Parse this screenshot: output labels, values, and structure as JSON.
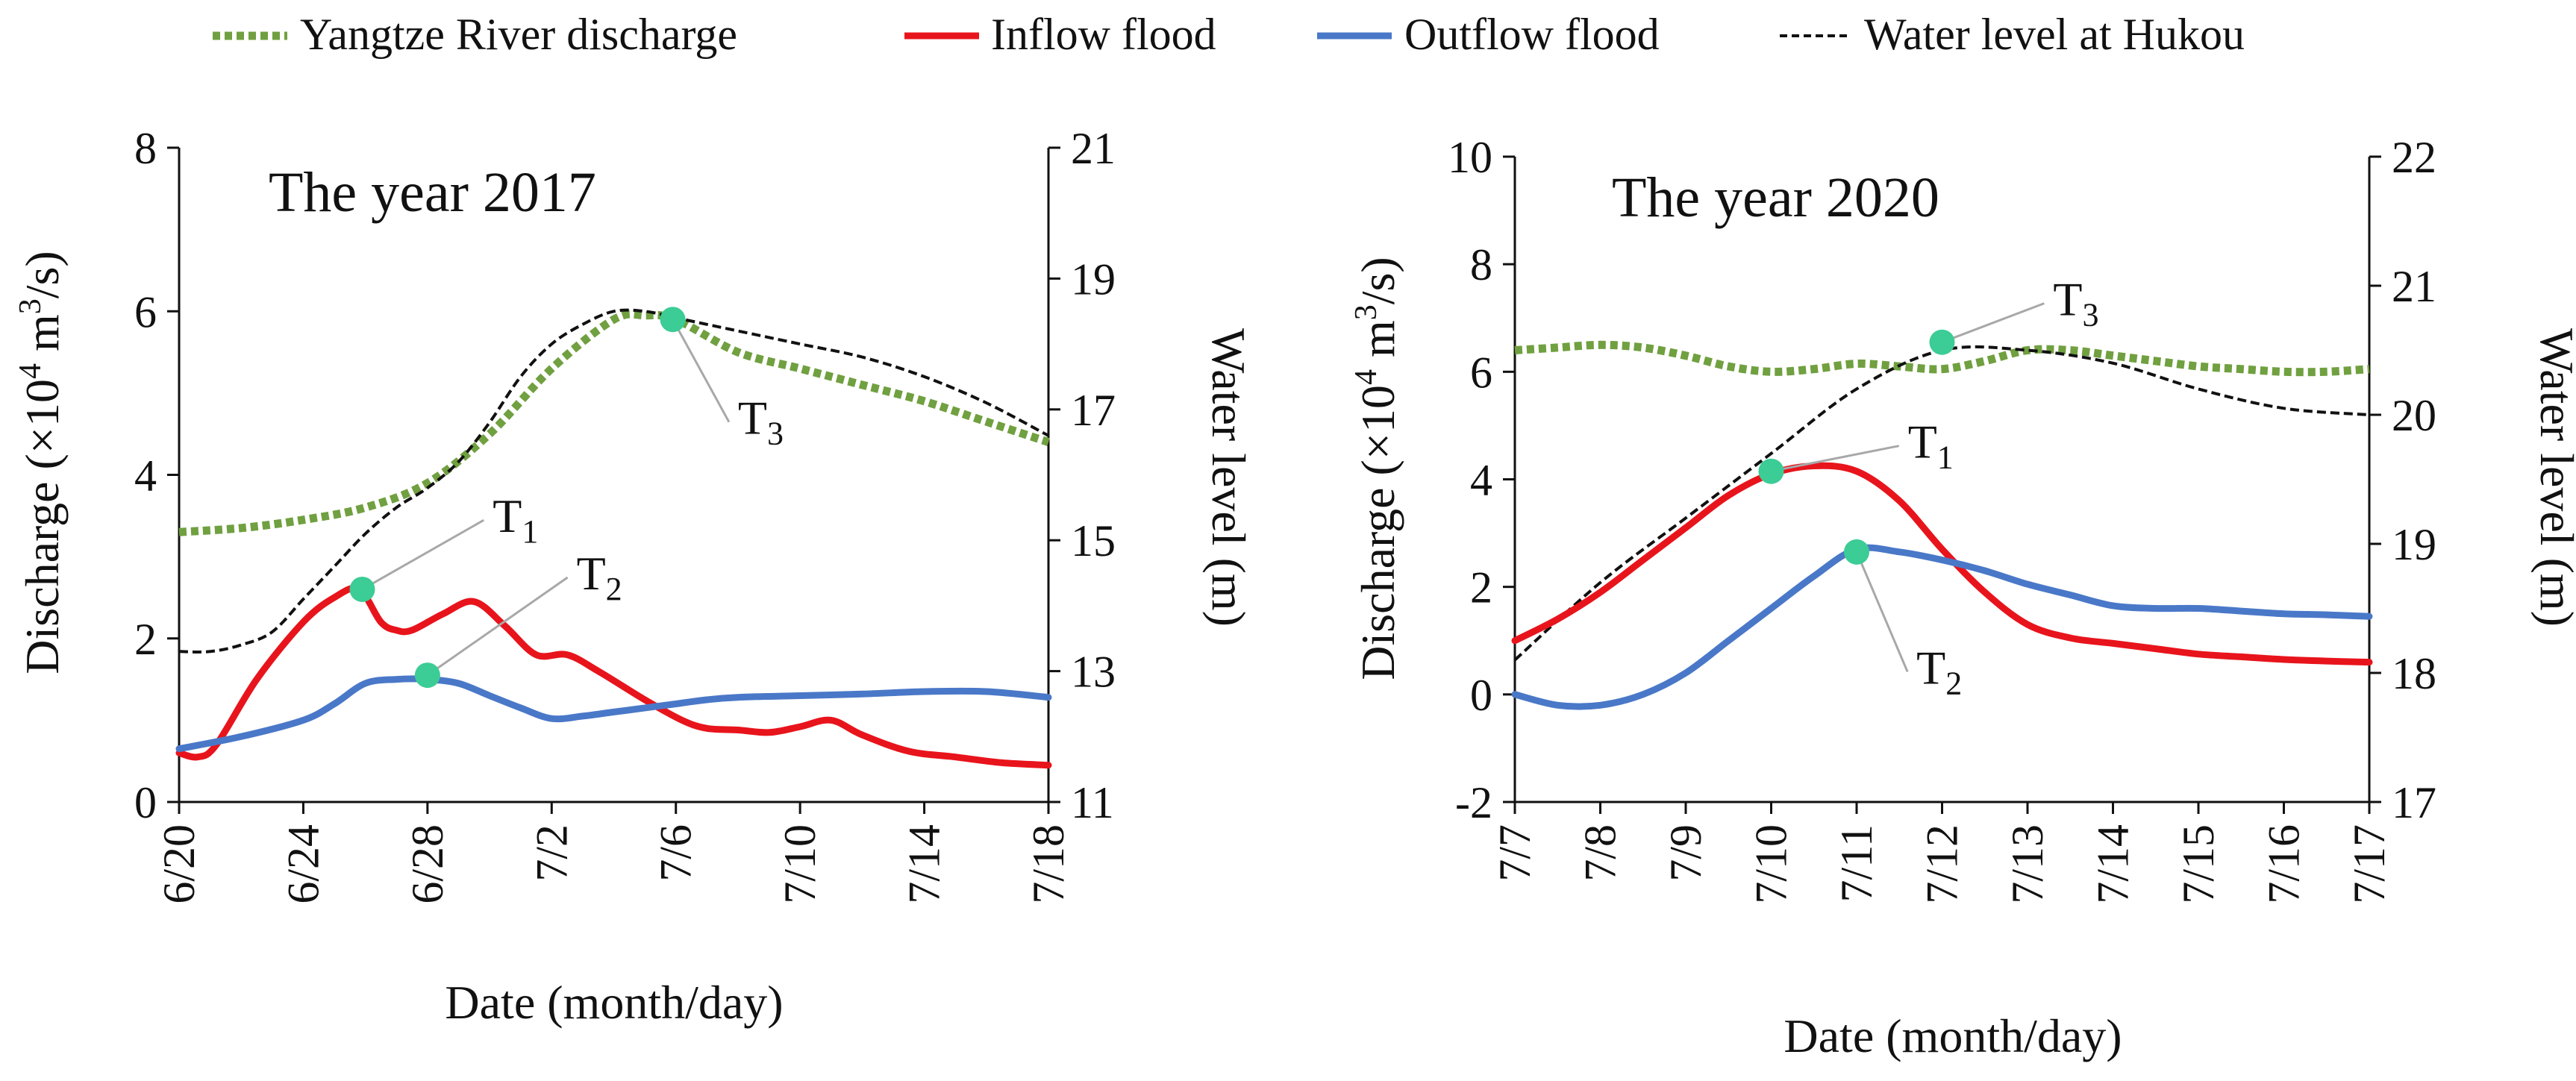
{
  "legend": {
    "items": [
      {
        "key": "yangtze",
        "label": "Yangtze River discharge"
      },
      {
        "key": "inflow",
        "label": "Inflow flood"
      },
      {
        "key": "outflow",
        "label": "Outflow flood"
      },
      {
        "key": "water",
        "label": "Water level at Hukou"
      }
    ]
  },
  "colors": {
    "yangtze": "#70a040",
    "inflow": "#e8141c",
    "outflow": "#4a78c8",
    "water": "#111111",
    "marker": "#3ccc96",
    "leader": "#a8a8a8"
  },
  "chart_data": [
    {
      "type": "line",
      "title": "The year 2017",
      "xlabel": "Date (month/day)",
      "ylabel": "Discharge (×10⁴ m³/s)",
      "ylabel_parts": [
        "Discharge (×10",
        "4",
        " m",
        "3",
        "/s)"
      ],
      "y2label": "Water level (m)",
      "xlim": [
        0,
        28
      ],
      "ylim": [
        0,
        8
      ],
      "y2lim": [
        11,
        21
      ],
      "x_ticks": [
        {
          "x": 0,
          "label": "6/20"
        },
        {
          "x": 4,
          "label": "6/24"
        },
        {
          "x": 8,
          "label": "6/28"
        },
        {
          "x": 12,
          "label": "7/2"
        },
        {
          "x": 16,
          "label": "7/6"
        },
        {
          "x": 20,
          "label": "7/10"
        },
        {
          "x": 24,
          "label": "7/14"
        },
        {
          "x": 28,
          "label": "7/18"
        }
      ],
      "y_ticks": [
        0,
        2,
        4,
        6,
        8
      ],
      "y2_ticks": [
        11,
        13,
        15,
        17,
        19,
        21
      ],
      "series": [
        {
          "key": "yangtze",
          "name": "Yangtze River discharge",
          "axis": "left",
          "points": [
            [
              0,
              3.3
            ],
            [
              2,
              3.35
            ],
            [
              4,
              3.45
            ],
            [
              6,
              3.6
            ],
            [
              8,
              3.9
            ],
            [
              10,
              4.5
            ],
            [
              12,
              5.3
            ],
            [
              14,
              5.9
            ],
            [
              15,
              5.95
            ],
            [
              16,
              5.9
            ],
            [
              18,
              5.5
            ],
            [
              20,
              5.3
            ],
            [
              22,
              5.1
            ],
            [
              24,
              4.9
            ],
            [
              26,
              4.65
            ],
            [
              28,
              4.4
            ]
          ]
        },
        {
          "key": "water",
          "name": "Water level at Hukou",
          "axis": "right",
          "points": [
            [
              0,
              13.3
            ],
            [
              1,
              13.3
            ],
            [
              2,
              13.4
            ],
            [
              3,
              13.6
            ],
            [
              4,
              14.1
            ],
            [
              5,
              14.6
            ],
            [
              6,
              15.1
            ],
            [
              7,
              15.5
            ],
            [
              8,
              15.8
            ],
            [
              9,
              16.2
            ],
            [
              10,
              16.8
            ],
            [
              11,
              17.5
            ],
            [
              12,
              18.0
            ],
            [
              13,
              18.3
            ],
            [
              14,
              18.5
            ],
            [
              15,
              18.5
            ],
            [
              16,
              18.4
            ],
            [
              17,
              18.3
            ],
            [
              18,
              18.2
            ],
            [
              20,
              18.0
            ],
            [
              22,
              17.8
            ],
            [
              24,
              17.5
            ],
            [
              26,
              17.1
            ],
            [
              28,
              16.6
            ]
          ]
        },
        {
          "key": "inflow",
          "name": "Inflow flood",
          "axis": "left",
          "points": [
            [
              0,
              0.6
            ],
            [
              0.6,
              0.55
            ],
            [
              1.2,
              0.7
            ],
            [
              2.5,
              1.5
            ],
            [
              4,
              2.2
            ],
            [
              5,
              2.5
            ],
            [
              5.8,
              2.6
            ],
            [
              6.5,
              2.2
            ],
            [
              7,
              2.1
            ],
            [
              7.5,
              2.1
            ],
            [
              8.5,
              2.3
            ],
            [
              9.5,
              2.45
            ],
            [
              10.5,
              2.15
            ],
            [
              11.5,
              1.8
            ],
            [
              12.5,
              1.8
            ],
            [
              13.5,
              1.6
            ],
            [
              15,
              1.25
            ],
            [
              16.2,
              1.0
            ],
            [
              17,
              0.9
            ],
            [
              18,
              0.88
            ],
            [
              19,
              0.85
            ],
            [
              20,
              0.92
            ],
            [
              21,
              1.0
            ],
            [
              22,
              0.82
            ],
            [
              23.5,
              0.62
            ],
            [
              25,
              0.55
            ],
            [
              26.5,
              0.48
            ],
            [
              28,
              0.45
            ]
          ]
        },
        {
          "key": "outflow",
          "name": "Outflow flood",
          "axis": "left",
          "points": [
            [
              0,
              0.65
            ],
            [
              2,
              0.8
            ],
            [
              4,
              1.0
            ],
            [
              5,
              1.2
            ],
            [
              6,
              1.45
            ],
            [
              7,
              1.5
            ],
            [
              8,
              1.5
            ],
            [
              9,
              1.45
            ],
            [
              10,
              1.3
            ],
            [
              11,
              1.15
            ],
            [
              12,
              1.02
            ],
            [
              13,
              1.05
            ],
            [
              14,
              1.1
            ],
            [
              15,
              1.15
            ],
            [
              16,
              1.2
            ],
            [
              17,
              1.25
            ],
            [
              18,
              1.28
            ],
            [
              20,
              1.3
            ],
            [
              22,
              1.32
            ],
            [
              24,
              1.35
            ],
            [
              26,
              1.35
            ],
            [
              28,
              1.28
            ]
          ]
        }
      ],
      "markers": [
        {
          "label": "T",
          "sub": "1",
          "x": 5.9,
          "y": 2.6,
          "label_x": 10.1,
          "label_y": 3.3
        },
        {
          "label": "T",
          "sub": "2",
          "x": 8.0,
          "y": 1.55,
          "label_x": 12.8,
          "label_y": 2.6
        },
        {
          "label": "T",
          "sub": "3",
          "x": 15.9,
          "y": 5.9,
          "label_x": 18.0,
          "label_y": 4.5
        }
      ]
    },
    {
      "type": "line",
      "title": "The year 2020",
      "xlabel": "Date (month/day)",
      "ylabel": "Discharge (×10⁴ m³/s)",
      "ylabel_parts": [
        "Discharge (×10",
        "4",
        " m",
        "3",
        "/s)"
      ],
      "y2label": "Water level (m)",
      "xlim": [
        0,
        10
      ],
      "ylim": [
        -2,
        10
      ],
      "y2lim": [
        17,
        22
      ],
      "x_ticks": [
        {
          "x": 0,
          "label": "7/7"
        },
        {
          "x": 1,
          "label": "7/8"
        },
        {
          "x": 2,
          "label": "7/9"
        },
        {
          "x": 3,
          "label": "7/10"
        },
        {
          "x": 4,
          "label": "7/11"
        },
        {
          "x": 5,
          "label": "7/12"
        },
        {
          "x": 6,
          "label": "7/13"
        },
        {
          "x": 7,
          "label": "7/14"
        },
        {
          "x": 8,
          "label": "7/15"
        },
        {
          "x": 9,
          "label": "7/16"
        },
        {
          "x": 10,
          "label": "7/17"
        }
      ],
      "y_ticks": [
        -2,
        0,
        2,
        4,
        6,
        8,
        10
      ],
      "y2_ticks": [
        17,
        18,
        19,
        20,
        21,
        22
      ],
      "series": [
        {
          "key": "yangtze",
          "name": "Yangtze River discharge",
          "axis": "left",
          "points": [
            [
              0,
              6.4
            ],
            [
              0.5,
              6.45
            ],
            [
              1,
              6.5
            ],
            [
              1.5,
              6.45
            ],
            [
              2,
              6.3
            ],
            [
              2.5,
              6.1
            ],
            [
              3,
              6.0
            ],
            [
              3.5,
              6.05
            ],
            [
              4,
              6.15
            ],
            [
              4.5,
              6.1
            ],
            [
              5,
              6.05
            ],
            [
              5.5,
              6.2
            ],
            [
              6,
              6.4
            ],
            [
              6.5,
              6.4
            ],
            [
              7,
              6.3
            ],
            [
              7.5,
              6.2
            ],
            [
              8,
              6.1
            ],
            [
              8.5,
              6.05
            ],
            [
              9,
              6.0
            ],
            [
              9.5,
              6.0
            ],
            [
              10,
              6.05
            ]
          ]
        },
        {
          "key": "water",
          "name": "Water level at Hukou",
          "axis": "right",
          "points": [
            [
              0,
              18.1
            ],
            [
              1,
              18.7
            ],
            [
              2,
              19.2
            ],
            [
              3,
              19.7
            ],
            [
              4,
              20.2
            ],
            [
              5,
              20.5
            ],
            [
              6,
              20.5
            ],
            [
              7,
              20.4
            ],
            [
              8,
              20.2
            ],
            [
              9,
              20.05
            ],
            [
              10,
              20.0
            ]
          ]
        },
        {
          "key": "inflow",
          "name": "Inflow flood",
          "axis": "left",
          "points": [
            [
              0,
              1.0
            ],
            [
              0.5,
              1.4
            ],
            [
              1,
              1.9
            ],
            [
              1.5,
              2.5
            ],
            [
              2,
              3.1
            ],
            [
              2.5,
              3.7
            ],
            [
              3,
              4.1
            ],
            [
              3.5,
              4.25
            ],
            [
              4,
              4.15
            ],
            [
              4.5,
              3.6
            ],
            [
              5,
              2.7
            ],
            [
              5.5,
              1.9
            ],
            [
              6,
              1.3
            ],
            [
              6.5,
              1.05
            ],
            [
              7,
              0.95
            ],
            [
              7.5,
              0.85
            ],
            [
              8,
              0.75
            ],
            [
              8.5,
              0.7
            ],
            [
              9,
              0.65
            ],
            [
              9.5,
              0.62
            ],
            [
              10,
              0.6
            ]
          ]
        },
        {
          "key": "outflow",
          "name": "Outflow flood",
          "axis": "left",
          "points": [
            [
              0,
              0.0
            ],
            [
              0.5,
              -0.2
            ],
            [
              1,
              -0.2
            ],
            [
              1.5,
              0.0
            ],
            [
              2,
              0.4
            ],
            [
              2.5,
              1.0
            ],
            [
              3,
              1.6
            ],
            [
              3.5,
              2.2
            ],
            [
              4,
              2.7
            ],
            [
              4.5,
              2.65
            ],
            [
              5,
              2.5
            ],
            [
              5.5,
              2.3
            ],
            [
              6,
              2.05
            ],
            [
              6.5,
              1.85
            ],
            [
              7,
              1.65
            ],
            [
              7.5,
              1.6
            ],
            [
              8,
              1.6
            ],
            [
              8.5,
              1.55
            ],
            [
              9,
              1.5
            ],
            [
              9.5,
              1.48
            ],
            [
              10,
              1.45
            ]
          ]
        }
      ],
      "markers": [
        {
          "label": "T",
          "sub": "1",
          "x": 3.0,
          "y": 4.15,
          "label_x": 4.6,
          "label_y": 4.4
        },
        {
          "label": "T",
          "sub": "2",
          "x": 4.0,
          "y": 2.65,
          "label_x": 4.7,
          "label_y": 0.2
        },
        {
          "label": "T",
          "sub": "3",
          "x": 5.0,
          "y": 6.55,
          "label_x": 6.3,
          "label_y": 7.05
        }
      ]
    }
  ]
}
